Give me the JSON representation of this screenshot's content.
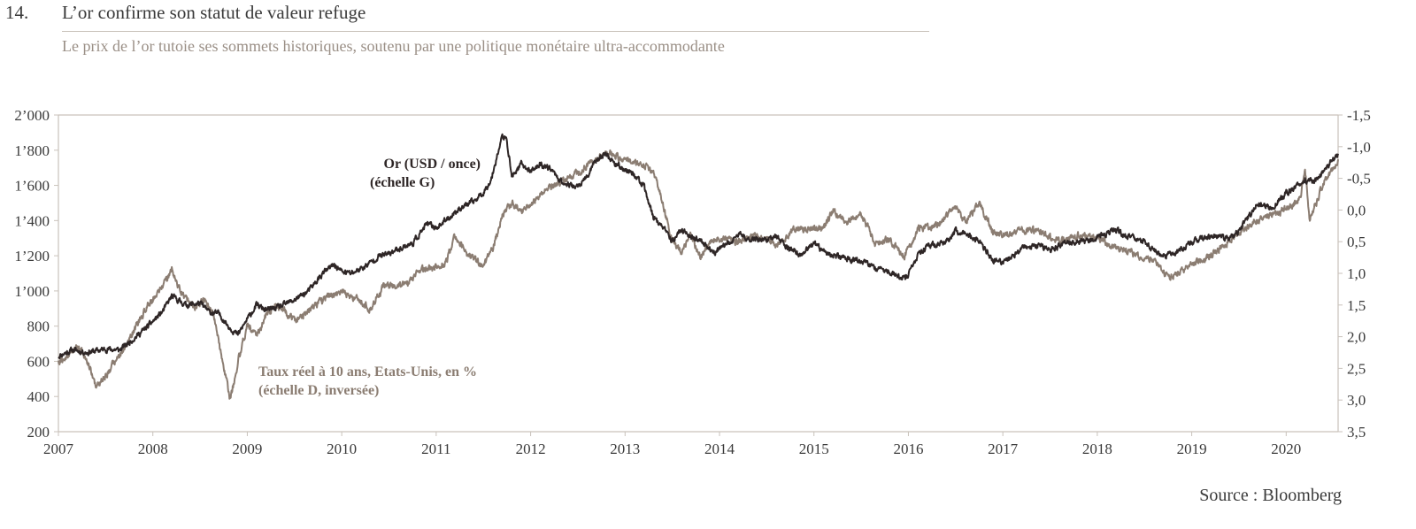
{
  "header": {
    "number": "14.",
    "title": "L’or confirme son statut de valeur refuge",
    "subtitle": "Le prix de l’or tutoie ses sommets historiques, soutenu par une politique monétaire ultra-accommodante"
  },
  "source": "Source : Bloomberg",
  "chart_data": {
    "type": "line",
    "title": "L’or confirme son statut de valeur refuge",
    "subtitle": "Le prix de l’or tutoie ses sommets historiques, soutenu par une politique monétaire ultra-accommodante",
    "x_range": [
      2007.0,
      2020.55
    ],
    "x_ticks": [
      "2007",
      "2008",
      "2009",
      "2010",
      "2011",
      "2012",
      "2013",
      "2014",
      "2015",
      "2016",
      "2017",
      "2018",
      "2019",
      "2020"
    ],
    "y_left": {
      "range": [
        200,
        2000
      ],
      "ticks": [
        "200",
        "400",
        "600",
        "800",
        "1’000",
        "1’200",
        "1’400",
        "1’600",
        "1’800",
        "2’000"
      ]
    },
    "y_right": {
      "range": [
        -1.5,
        3.5
      ],
      "inverted": true,
      "ticks": [
        "-1,5",
        "-1,0",
        "-0,5",
        "0,0",
        "0,5",
        "1,0",
        "1,5",
        "2,0",
        "2,5",
        "3,0",
        "3,5"
      ]
    },
    "grid": false,
    "series": [
      {
        "name": "Or (USD / once) (échelle G)",
        "label_lines": [
          "Or (USD / once)",
          "(échelle G)"
        ],
        "axis": "left",
        "color": "#2e2626",
        "x": [
          2007.0,
          2007.15,
          2007.3,
          2007.5,
          2007.65,
          2007.8,
          2007.95,
          2008.1,
          2008.2,
          2008.35,
          2008.5,
          2008.6,
          2008.7,
          2008.8,
          2008.9,
          2009.0,
          2009.1,
          2009.2,
          2009.35,
          2009.5,
          2009.65,
          2009.8,
          2009.92,
          2010.0,
          2010.1,
          2010.25,
          2010.4,
          2010.5,
          2010.6,
          2010.75,
          2010.9,
          2011.0,
          2011.1,
          2011.25,
          2011.4,
          2011.5,
          2011.58,
          2011.65,
          2011.7,
          2011.75,
          2011.8,
          2011.9,
          2012.0,
          2012.1,
          2012.2,
          2012.35,
          2012.5,
          2012.6,
          2012.7,
          2012.8,
          2012.9,
          2013.0,
          2013.1,
          2013.2,
          2013.3,
          2013.4,
          2013.5,
          2013.6,
          2013.7,
          2013.8,
          2013.95,
          2014.1,
          2014.2,
          2014.3,
          2014.5,
          2014.6,
          2014.7,
          2014.85,
          2015.0,
          2015.1,
          2015.3,
          2015.5,
          2015.65,
          2015.8,
          2015.95,
          2016.0,
          2016.1,
          2016.2,
          2016.4,
          2016.5,
          2016.6,
          2016.75,
          2016.9,
          2017.0,
          2017.2,
          2017.4,
          2017.5,
          2017.65,
          2017.8,
          2017.95,
          2018.1,
          2018.2,
          2018.35,
          2018.5,
          2018.6,
          2018.7,
          2018.85,
          2019.0,
          2019.2,
          2019.4,
          2019.5,
          2019.6,
          2019.7,
          2019.85,
          2020.0,
          2020.1,
          2020.2,
          2020.3,
          2020.4,
          2020.5,
          2020.55
        ],
        "values": [
          630,
          665,
          650,
          670,
          665,
          730,
          800,
          880,
          970,
          920,
          930,
          880,
          870,
          800,
          750,
          840,
          920,
          890,
          910,
          950,
          1000,
          1100,
          1150,
          1110,
          1100,
          1140,
          1200,
          1210,
          1240,
          1270,
          1380,
          1360,
          1400,
          1470,
          1510,
          1560,
          1630,
          1780,
          1880,
          1850,
          1650,
          1720,
          1680,
          1720,
          1700,
          1610,
          1590,
          1650,
          1750,
          1780,
          1720,
          1690,
          1660,
          1590,
          1420,
          1360,
          1280,
          1350,
          1310,
          1280,
          1220,
          1270,
          1320,
          1300,
          1290,
          1310,
          1260,
          1200,
          1270,
          1220,
          1190,
          1170,
          1130,
          1110,
          1070,
          1090,
          1200,
          1250,
          1280,
          1340,
          1330,
          1280,
          1170,
          1160,
          1240,
          1260,
          1230,
          1270,
          1280,
          1290,
          1330,
          1340,
          1310,
          1280,
          1230,
          1200,
          1220,
          1280,
          1310,
          1300,
          1340,
          1420,
          1500,
          1470,
          1560,
          1590,
          1630,
          1620,
          1680,
          1750,
          1780
        ]
      },
      {
        "name": "Taux réel à 10 ans, Etats-Unis, en % (échelle D, inversée)",
        "label_lines": [
          "Taux réel à 10 ans, Etats-Unis, en %",
          "(échelle D, inversée)"
        ],
        "axis": "right",
        "color": "#8b7d72",
        "x": [
          2007.0,
          2007.1,
          2007.2,
          2007.3,
          2007.4,
          2007.5,
          2007.6,
          2007.7,
          2007.8,
          2007.95,
          2008.1,
          2008.2,
          2008.25,
          2008.35,
          2008.45,
          2008.55,
          2008.65,
          2008.75,
          2008.82,
          2008.9,
          2009.0,
          2009.1,
          2009.2,
          2009.3,
          2009.4,
          2009.5,
          2009.7,
          2009.85,
          2010.0,
          2010.15,
          2010.3,
          2010.45,
          2010.6,
          2010.7,
          2010.85,
          2011.0,
          2011.1,
          2011.2,
          2011.3,
          2011.5,
          2011.6,
          2011.7,
          2011.8,
          2011.9,
          2012.0,
          2012.2,
          2012.4,
          2012.6,
          2012.75,
          2012.85,
          2012.95,
          2013.1,
          2013.2,
          2013.3,
          2013.4,
          2013.5,
          2013.6,
          2013.7,
          2013.8,
          2013.9,
          2014.0,
          2014.2,
          2014.4,
          2014.6,
          2014.8,
          2015.0,
          2015.1,
          2015.2,
          2015.35,
          2015.5,
          2015.65,
          2015.8,
          2015.95,
          2016.1,
          2016.3,
          2016.5,
          2016.6,
          2016.75,
          2016.9,
          2017.0,
          2017.2,
          2017.4,
          2017.6,
          2017.8,
          2018.0,
          2018.2,
          2018.4,
          2018.6,
          2018.75,
          2018.85,
          2018.95,
          2019.1,
          2019.3,
          2019.5,
          2019.7,
          2019.9,
          2020.05,
          2020.15,
          2020.2,
          2020.25,
          2020.3,
          2020.4,
          2020.5,
          2020.55
        ],
        "values": [
          2.4,
          2.3,
          2.15,
          2.35,
          2.8,
          2.6,
          2.4,
          2.2,
          1.9,
          1.5,
          1.2,
          0.95,
          1.15,
          1.4,
          1.55,
          1.4,
          1.7,
          2.5,
          3.0,
          2.4,
          1.8,
          2.0,
          1.65,
          1.5,
          1.6,
          1.75,
          1.55,
          1.35,
          1.3,
          1.4,
          1.55,
          1.2,
          1.2,
          1.15,
          0.95,
          0.9,
          0.85,
          0.4,
          0.65,
          0.9,
          0.6,
          0.1,
          -0.1,
          0.0,
          -0.1,
          -0.35,
          -0.5,
          -0.7,
          -0.85,
          -0.9,
          -0.8,
          -0.75,
          -0.7,
          -0.6,
          -0.1,
          0.5,
          0.65,
          0.4,
          0.75,
          0.5,
          0.45,
          0.5,
          0.4,
          0.55,
          0.3,
          0.3,
          0.3,
          0.0,
          0.2,
          0.05,
          0.55,
          0.45,
          0.75,
          0.3,
          0.25,
          -0.05,
          0.2,
          -0.1,
          0.35,
          0.4,
          0.3,
          0.35,
          0.5,
          0.4,
          0.45,
          0.6,
          0.7,
          0.8,
          1.05,
          1.0,
          0.9,
          0.8,
          0.6,
          0.35,
          0.15,
          0.05,
          -0.05,
          -0.2,
          -0.65,
          0.15,
          -0.05,
          -0.45,
          -0.65,
          -0.8
        ]
      }
    ]
  }
}
